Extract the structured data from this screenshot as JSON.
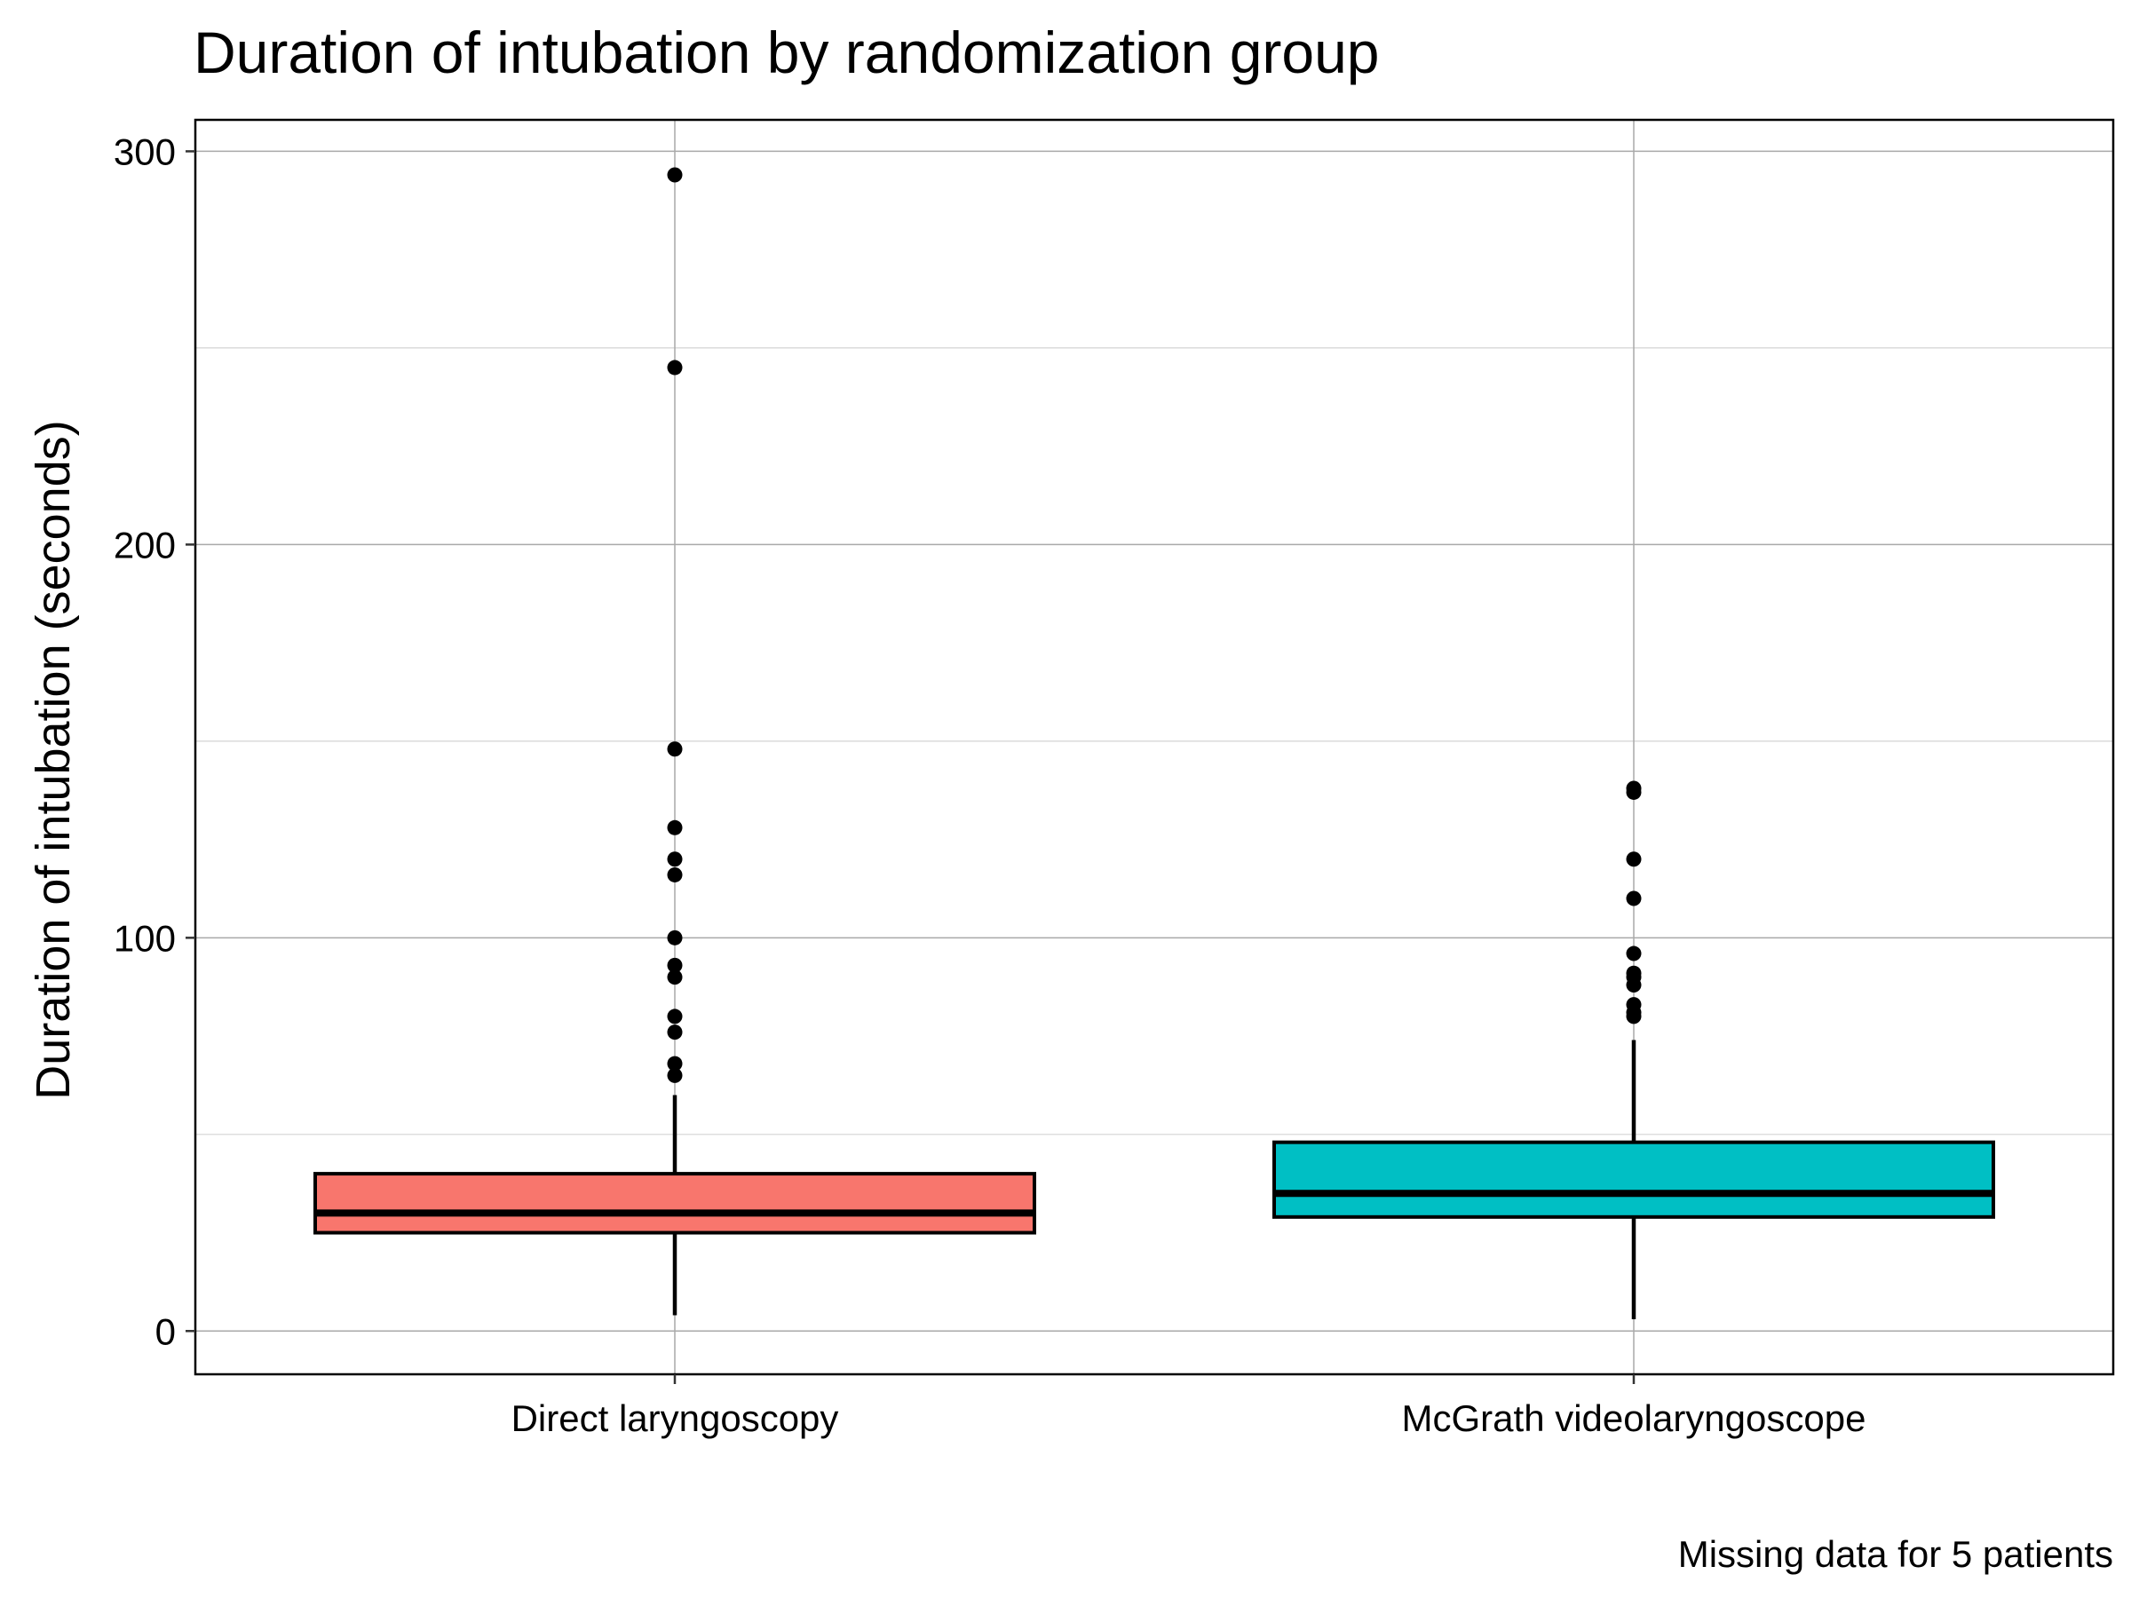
{
  "chart_data": {
    "type": "boxplot",
    "title": "Duration of intubation by randomization group",
    "ylabel": "Duration of intubation (seconds)",
    "xlabel": "",
    "caption": "Missing data for 5 patients",
    "ylim": [
      -11,
      308
    ],
    "y_ticks": [
      0,
      100,
      200,
      300
    ],
    "y_minor_gridlines": [
      50,
      150,
      250
    ],
    "grid": true,
    "legend": "none",
    "categories": [
      "Direct laryngoscopy",
      "McGrath videolaryngoscope"
    ],
    "boxes": [
      {
        "category": "Direct laryngoscopy",
        "color": "#F8766D",
        "whisker_low": 4,
        "q1": 25,
        "median": 30,
        "q3": 40,
        "whisker_high": 60,
        "outliers": [
          65,
          68,
          76,
          80,
          90,
          93,
          100,
          116,
          120,
          128,
          148,
          245,
          294
        ]
      },
      {
        "category": "McGrath videolaryngoscope",
        "color": "#00BFC4",
        "whisker_low": 3,
        "q1": 29,
        "median": 35,
        "q3": 48,
        "whisker_high": 74,
        "outliers": [
          80,
          81,
          83,
          88,
          90,
          91,
          96,
          110,
          120,
          137,
          138
        ]
      }
    ]
  }
}
